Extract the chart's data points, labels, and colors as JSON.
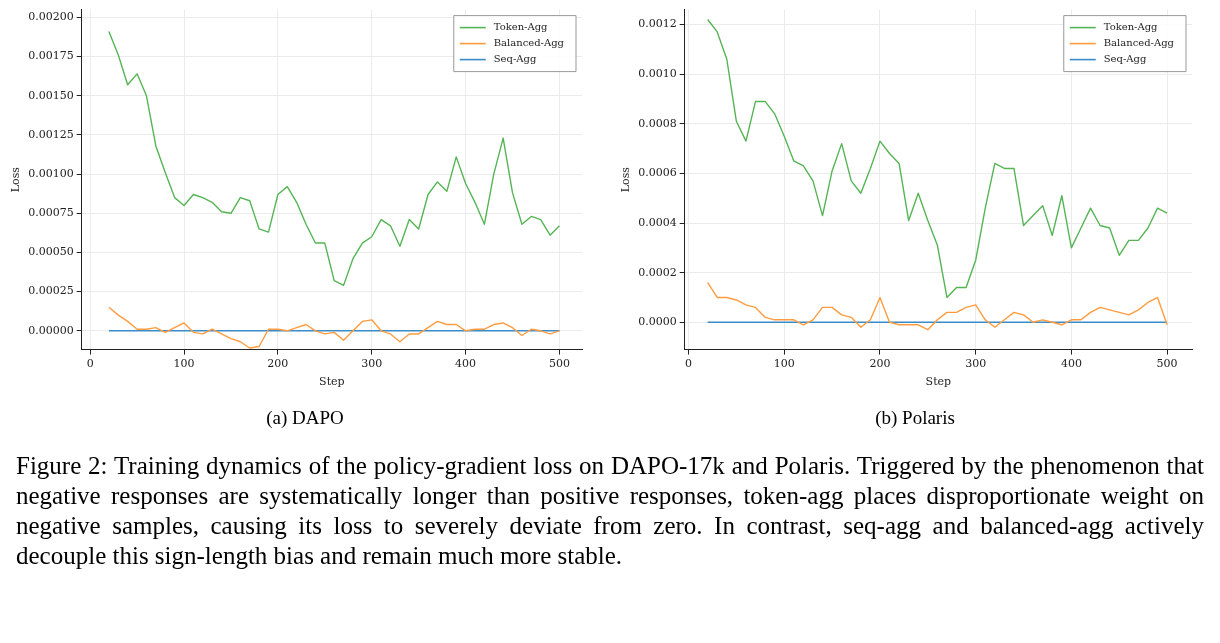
{
  "chart_data": [
    {
      "type": "line",
      "title": "(a) DAPO",
      "xlabel": "Step",
      "ylabel": "Loss",
      "grid": true,
      "legend": "top right",
      "marker": "none",
      "line_style": "solid",
      "annotations": [
        "Figure 2: Training dynamics of the policy-gradient loss on DAPO-17k and Polaris. Triggered by the phenomenon that negative responses are systematically longer than positive responses, token-agg places disproportionate weight on negative samples, causing its loss to severely deviate from zero. In contrast, seq-agg and balanced-agg actively decouple this sign-length bias and remain much more stable."
      ],
      "xlim": [
        -9,
        524
      ],
      "xticks": [
        0,
        100,
        200,
        300,
        400,
        500
      ],
      "ylim": [
        -0.00012,
        0.00205
      ],
      "yticks": [
        {
          "value": 0,
          "label": "0.00000"
        },
        {
          "value": 0.00025,
          "label": "0.00025"
        },
        {
          "value": 0.0005,
          "label": "0.00050"
        },
        {
          "value": 0.00075,
          "label": "0.00075"
        },
        {
          "value": 0.001,
          "label": "0.00100"
        },
        {
          "value": 0.00125,
          "label": "0.00125"
        },
        {
          "value": 0.0015,
          "label": "0.00150"
        },
        {
          "value": 0.00175,
          "label": "0.00175"
        },
        {
          "value": 0.002,
          "label": "0.00200"
        }
      ],
      "x": [
        20,
        30,
        40,
        50,
        60,
        70,
        80,
        90,
        100,
        110,
        120,
        130,
        140,
        150,
        160,
        170,
        180,
        190,
        200,
        210,
        220,
        230,
        240,
        250,
        260,
        270,
        280,
        290,
        300,
        310,
        320,
        330,
        340,
        350,
        360,
        370,
        380,
        390,
        400,
        410,
        420,
        430,
        440,
        450,
        460,
        470,
        480,
        490,
        500
      ],
      "series": [
        {
          "name": "Token-Agg",
          "color": "#55b555",
          "values": [
            0.00191,
            0.00176,
            0.00157,
            0.00164,
            0.0015,
            0.00118,
            0.00101,
            0.00085,
            0.0008,
            0.00087,
            0.00085,
            0.00082,
            0.00076,
            0.00075,
            0.00085,
            0.00083,
            0.00065,
            0.00063,
            0.00087,
            0.00092,
            0.00082,
            0.00068,
            0.00056,
            0.00056,
            0.00032,
            0.00029,
            0.00046,
            0.00056,
            0.0006,
            0.00071,
            0.00067,
            0.00054,
            0.00071,
            0.00065,
            0.00087,
            0.00095,
            0.00089,
            0.00111,
            0.00094,
            0.00082,
            0.00068,
            0.001,
            0.00123,
            0.00088,
            0.00068,
            0.00073,
            0.00071,
            0.00061,
            0.00067
          ]
        },
        {
          "name": "Balanced-Agg",
          "color": "#ff9c40",
          "values": [
            0.00015,
            0.0001,
            6e-05,
            1e-05,
            1e-05,
            2e-05,
            -1e-05,
            2e-05,
            5e-05,
            -1e-05,
            -2e-05,
            1e-05,
            -2e-05,
            -5e-05,
            -7e-05,
            -0.00011,
            -0.0001,
            1e-05,
            1e-05,
            0,
            2e-05,
            4e-05,
            0,
            -2e-05,
            -1e-05,
            -6e-05,
            0,
            6e-05,
            7e-05,
            0,
            -2e-05,
            -7e-05,
            -2e-05,
            -2e-05,
            2e-05,
            6e-05,
            4e-05,
            4e-05,
            0,
            1e-05,
            1e-05,
            4e-05,
            5e-05,
            2e-05,
            -3e-05,
            1e-05,
            0,
            -2e-05,
            0
          ]
        },
        {
          "name": "Seq-Agg",
          "color": "#3b8bc9",
          "values": [
            0,
            0,
            0,
            0,
            0,
            0,
            0,
            0,
            0,
            0,
            0,
            0,
            0,
            0,
            0,
            0,
            0,
            0,
            0,
            0,
            0,
            0,
            0,
            0,
            0,
            0,
            0,
            0,
            0,
            0,
            0,
            0,
            0,
            0,
            0,
            0,
            0,
            0,
            0,
            0,
            0,
            0,
            0,
            0,
            0,
            0,
            0,
            0,
            0
          ]
        }
      ]
    },
    {
      "type": "line",
      "title": "(b) Polaris",
      "xlabel": "Step",
      "ylabel": "Loss",
      "grid": true,
      "legend": "top right",
      "marker": "none",
      "line_style": "solid",
      "xlim": [
        -4,
        526
      ],
      "xticks": [
        0,
        100,
        200,
        300,
        400,
        500
      ],
      "ylim": [
        -0.00011,
        0.00126
      ],
      "yticks": [
        {
          "value": 0,
          "label": "0.0000"
        },
        {
          "value": 0.0002,
          "label": "0.0002"
        },
        {
          "value": 0.0004,
          "label": "0.0004"
        },
        {
          "value": 0.0006,
          "label": "0.0006"
        },
        {
          "value": 0.0008,
          "label": "0.0008"
        },
        {
          "value": 0.001,
          "label": "0.0010"
        },
        {
          "value": 0.0012,
          "label": "0.0012"
        }
      ],
      "x": [
        20,
        30,
        40,
        50,
        60,
        70,
        80,
        90,
        100,
        110,
        120,
        130,
        140,
        150,
        160,
        170,
        180,
        190,
        200,
        210,
        220,
        230,
        240,
        250,
        260,
        270,
        280,
        290,
        300,
        310,
        320,
        330,
        340,
        350,
        360,
        370,
        380,
        390,
        400,
        410,
        420,
        430,
        440,
        450,
        460,
        470,
        480,
        490,
        500
      ],
      "series": [
        {
          "name": "Token-Agg",
          "color": "#55b555",
          "values": [
            0.00122,
            0.00117,
            0.00106,
            0.00081,
            0.00073,
            0.00089,
            0.00089,
            0.00084,
            0.00075,
            0.00065,
            0.00063,
            0.00057,
            0.00043,
            0.00061,
            0.00072,
            0.00057,
            0.00052,
            0.00062,
            0.00073,
            0.00068,
            0.00064,
            0.00041,
            0.00052,
            0.00041,
            0.00031,
            0.0001,
            0.00014,
            0.00014,
            0.00025,
            0.00046,
            0.00064,
            0.00062,
            0.00062,
            0.00039,
            0.00043,
            0.00047,
            0.00035,
            0.00051,
            0.0003,
            0.00038,
            0.00046,
            0.00039,
            0.00038,
            0.00027,
            0.00033,
            0.00033,
            0.00038,
            0.00046,
            0.00044
          ]
        },
        {
          "name": "Balanced-Agg",
          "color": "#ff9c40",
          "values": [
            0.00016,
            0.0001,
            0.0001,
            9e-05,
            7e-05,
            6e-05,
            2e-05,
            1e-05,
            1e-05,
            1e-05,
            -1e-05,
            1e-05,
            6e-05,
            6e-05,
            3e-05,
            2e-05,
            -2e-05,
            1e-05,
            0.0001,
            0,
            -1e-05,
            -1e-05,
            -1e-05,
            -3e-05,
            1e-05,
            4e-05,
            4e-05,
            6e-05,
            7e-05,
            1e-05,
            -2e-05,
            1e-05,
            4e-05,
            3e-05,
            0,
            1e-05,
            0,
            -1e-05,
            1e-05,
            1e-05,
            4e-05,
            6e-05,
            5e-05,
            4e-05,
            3e-05,
            5e-05,
            8e-05,
            0.0001,
            -1e-05
          ]
        },
        {
          "name": "Seq-Agg",
          "color": "#3b8bc9",
          "values": [
            0,
            0,
            0,
            0,
            0,
            0,
            0,
            0,
            0,
            0,
            0,
            0,
            0,
            0,
            0,
            0,
            0,
            0,
            0,
            0,
            0,
            0,
            0,
            0,
            0,
            0,
            0,
            0,
            0,
            0,
            0,
            0,
            0,
            0,
            0,
            0,
            0,
            0,
            0,
            0,
            0,
            0,
            0,
            0,
            0,
            0,
            0,
            0,
            0
          ]
        }
      ]
    }
  ]
}
